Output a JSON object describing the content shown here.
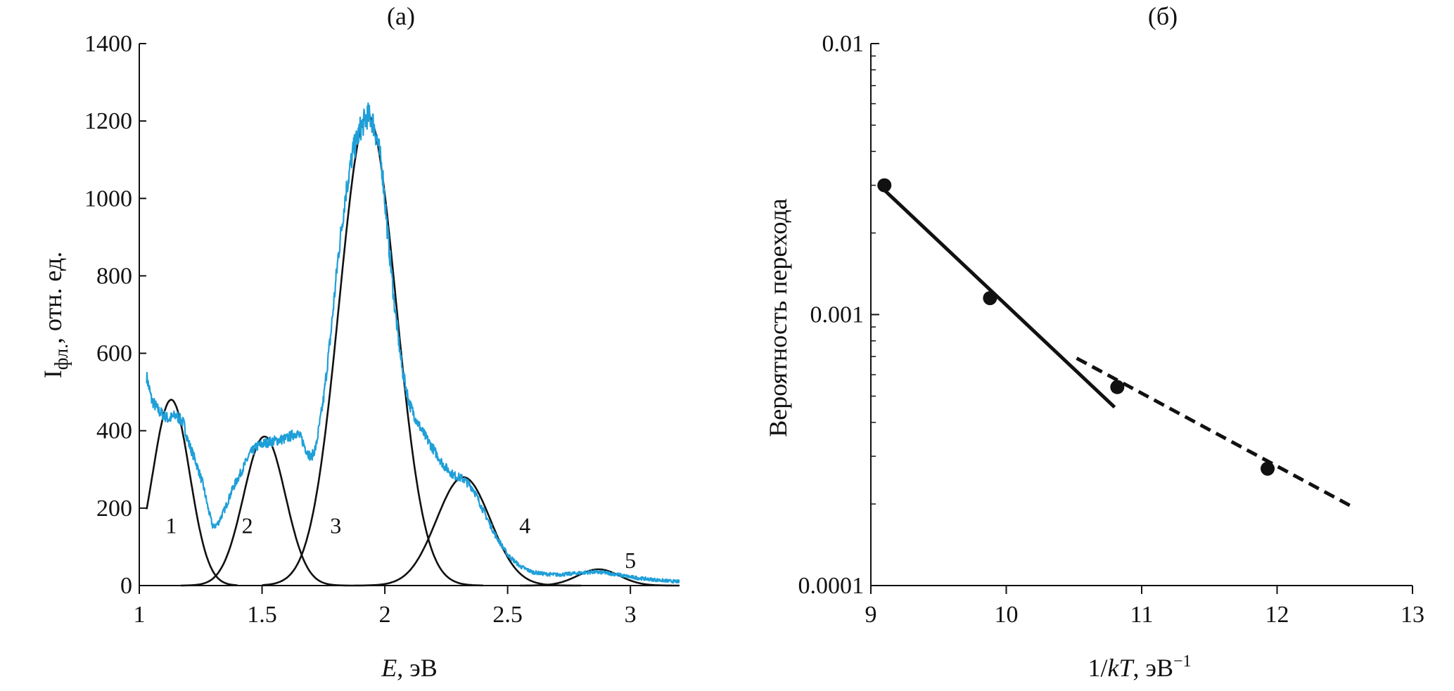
{
  "chart_data": [
    {
      "type": "line",
      "panel_label": "(а)",
      "xlabel": {
        "var": "E",
        "unit": ", эВ"
      },
      "ylabel": {
        "main": "I",
        "sub": "фл.",
        "rest": ", отн. ед."
      },
      "xlim": [
        1,
        3.2
      ],
      "ylim": [
        0,
        1400
      ],
      "xticks": [
        1,
        1.5,
        2,
        2.5,
        3
      ],
      "xtick_labels": [
        "1",
        "1.5",
        "2",
        "2.5",
        "3"
      ],
      "yticks": [
        0,
        200,
        400,
        600,
        800,
        1000,
        1200,
        1400
      ],
      "ytick_labels": [
        "0",
        "200",
        "400",
        "600",
        "800",
        "1000",
        "1200",
        "1400"
      ],
      "grid": false,
      "colors": {
        "spectrum": "#1f9fd8",
        "components": "#111111"
      },
      "spectrum": {
        "x": [
          1.03,
          1.05,
          1.08,
          1.12,
          1.15,
          1.18,
          1.2,
          1.23,
          1.26,
          1.28,
          1.3,
          1.32,
          1.35,
          1.38,
          1.42,
          1.45,
          1.48,
          1.52,
          1.56,
          1.6,
          1.64,
          1.66,
          1.68,
          1.7,
          1.72,
          1.75,
          1.78,
          1.81,
          1.84,
          1.87,
          1.9,
          1.93,
          1.95,
          1.97,
          1.99,
          2.01,
          2.04,
          2.07,
          2.1,
          2.13,
          2.16,
          2.2,
          2.24,
          2.28,
          2.32,
          2.36,
          2.4,
          2.45,
          2.5,
          2.55,
          2.6,
          2.65,
          2.7,
          2.75,
          2.8,
          2.85,
          2.9,
          2.95,
          3.0,
          3.05,
          3.1,
          3.15,
          3.2
        ],
        "y": [
          540,
          480,
          450,
          430,
          440,
          420,
          370,
          320,
          260,
          200,
          150,
          160,
          200,
          250,
          300,
          340,
          360,
          370,
          375,
          380,
          395,
          380,
          350,
          330,
          360,
          480,
          650,
          850,
          1010,
          1120,
          1180,
          1215,
          1200,
          1150,
          1070,
          920,
          720,
          560,
          470,
          425,
          390,
          350,
          310,
          285,
          275,
          250,
          195,
          130,
          80,
          50,
          35,
          30,
          28,
          30,
          33,
          35,
          33,
          28,
          22,
          18,
          15,
          12,
          10
        ]
      },
      "components": [
        {
          "label": "1",
          "center": 1.13,
          "amplitude": 480,
          "sigma": 0.075,
          "x_start": 1.03,
          "x_end": 1.4,
          "label_x": 1.13,
          "label_y": 135
        },
        {
          "label": "2",
          "center": 1.51,
          "amplitude": 385,
          "sigma": 0.085,
          "x_start": 1.17,
          "x_end": 1.85,
          "label_x": 1.44,
          "label_y": 135
        },
        {
          "label": "3",
          "center": 1.93,
          "amplitude": 1215,
          "sigma": 0.115,
          "x_start": 1.5,
          "x_end": 2.4,
          "label_x": 1.8,
          "label_y": 135
        },
        {
          "label": "4",
          "center": 2.32,
          "amplitude": 280,
          "sigma": 0.11,
          "x_start": 1.85,
          "x_end": 2.8,
          "label_x": 2.57,
          "label_y": 135
        },
        {
          "label": "5",
          "center": 2.87,
          "amplitude": 42,
          "sigma": 0.085,
          "x_start": 2.55,
          "x_end": 3.2,
          "label_x": 3.0,
          "label_y": 45
        }
      ]
    },
    {
      "type": "scatter",
      "panel_label": "(б)",
      "xlabel": {
        "prefix": "1/",
        "var": "kT",
        "unit": ", эВ",
        "sup": "−1"
      },
      "ylabel": "Вероятность перехода",
      "yscale": "log",
      "xlim": [
        9,
        13
      ],
      "ylim": [
        0.0001,
        0.01
      ],
      "xticks": [
        9,
        10,
        11,
        12,
        13
      ],
      "xtick_labels": [
        "9",
        "10",
        "11",
        "12",
        "13"
      ],
      "yticks": [
        0.0001,
        0.001,
        0.01
      ],
      "ytick_labels": [
        "0.0001",
        "0.001",
        "0.01"
      ],
      "grid": false,
      "points": {
        "x": [
          9.1,
          9.88,
          10.82,
          11.93
        ],
        "y": [
          0.003,
          0.00115,
          0.00054,
          0.00027
        ]
      },
      "fit_lines": [
        {
          "style": "solid",
          "x": [
            9.1,
            10.8
          ],
          "y": [
            0.00288,
            0.000455
          ]
        },
        {
          "style": "dashed",
          "x": [
            10.52,
            12.55
          ],
          "y": [
            0.00069,
            0.000196
          ]
        }
      ]
    }
  ]
}
